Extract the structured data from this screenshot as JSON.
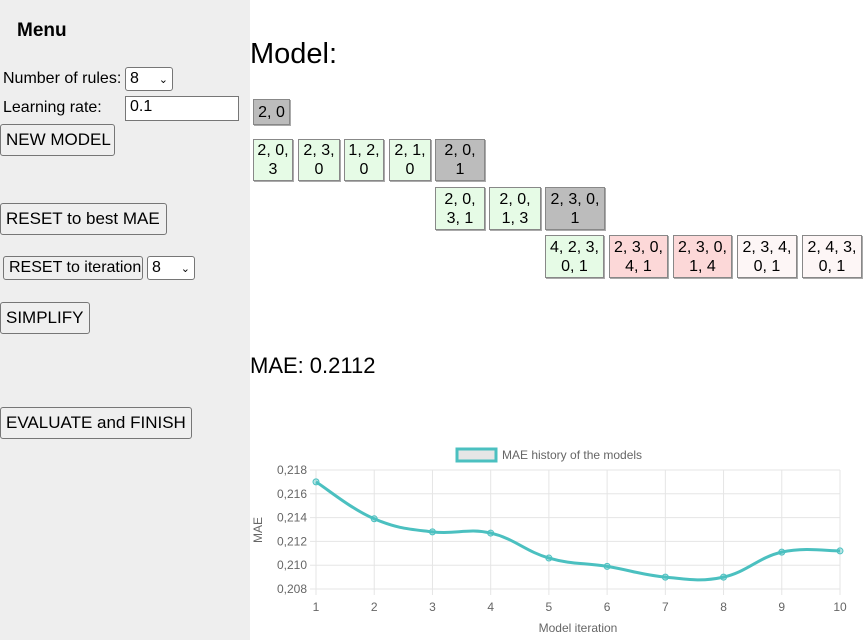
{
  "menu": {
    "title": "Menu",
    "rules_label": "Number of rules:",
    "rules_value": "8",
    "lr_label": "Learning rate:",
    "lr_value": "0.1",
    "new_model": "NEW MODEL",
    "reset_best": "RESET to best MAE",
    "reset_iter": "RESET to iteration",
    "reset_iter_value": "8",
    "simplify": "SIMPLIFY",
    "evaluate": "EVALUATE and FINISH"
  },
  "model": {
    "title": "Model:",
    "rows": [
      [
        {
          "text": "2, 0",
          "state": "gray"
        }
      ],
      [
        {
          "text": "2, 0,\n3",
          "state": "green"
        },
        {
          "text": "2, 3,\n0",
          "state": "green"
        },
        {
          "text": "1, 2,\n0",
          "state": "green"
        },
        {
          "text": "2, 1,\n0",
          "state": "green"
        },
        {
          "text": "2, 0,\n1",
          "state": "gray"
        }
      ],
      [
        {
          "text": "2, 0,\n3, 1",
          "state": "green"
        },
        {
          "text": "2, 0,\n1, 3",
          "state": "green"
        },
        {
          "text": "2, 3, 0,\n1",
          "state": "gray"
        }
      ],
      [
        {
          "text": "4, 2, 3,\n0, 1",
          "state": "green"
        },
        {
          "text": "2, 3, 0,\n4, 1",
          "state": "red"
        },
        {
          "text": "2, 3, 0,\n1, 4",
          "state": "red"
        },
        {
          "text": "2, 3, 4,\n0, 1",
          "state": "white"
        },
        {
          "text": "2, 4, 3,\n0, 1",
          "state": "white"
        }
      ]
    ]
  },
  "mae": {
    "label": "MAE:",
    "value": "0.2112"
  },
  "chart_data": {
    "type": "line",
    "legend": "MAE history of the models",
    "xlabel": "Model iteration",
    "ylabel": "MAE",
    "x": [
      1,
      2,
      3,
      4,
      5,
      6,
      7,
      8,
      9,
      10
    ],
    "values": [
      0.217,
      0.2139,
      0.2128,
      0.2127,
      0.2106,
      0.2099,
      0.209,
      0.209,
      0.2111,
      0.2112
    ],
    "ylim": [
      0.208,
      0.218
    ],
    "yticks": [
      "0,218",
      "0,216",
      "0,214",
      "0,212",
      "0,210",
      "0,208"
    ],
    "grid": true,
    "legend_position": "top",
    "color": "#4bc0c0"
  }
}
